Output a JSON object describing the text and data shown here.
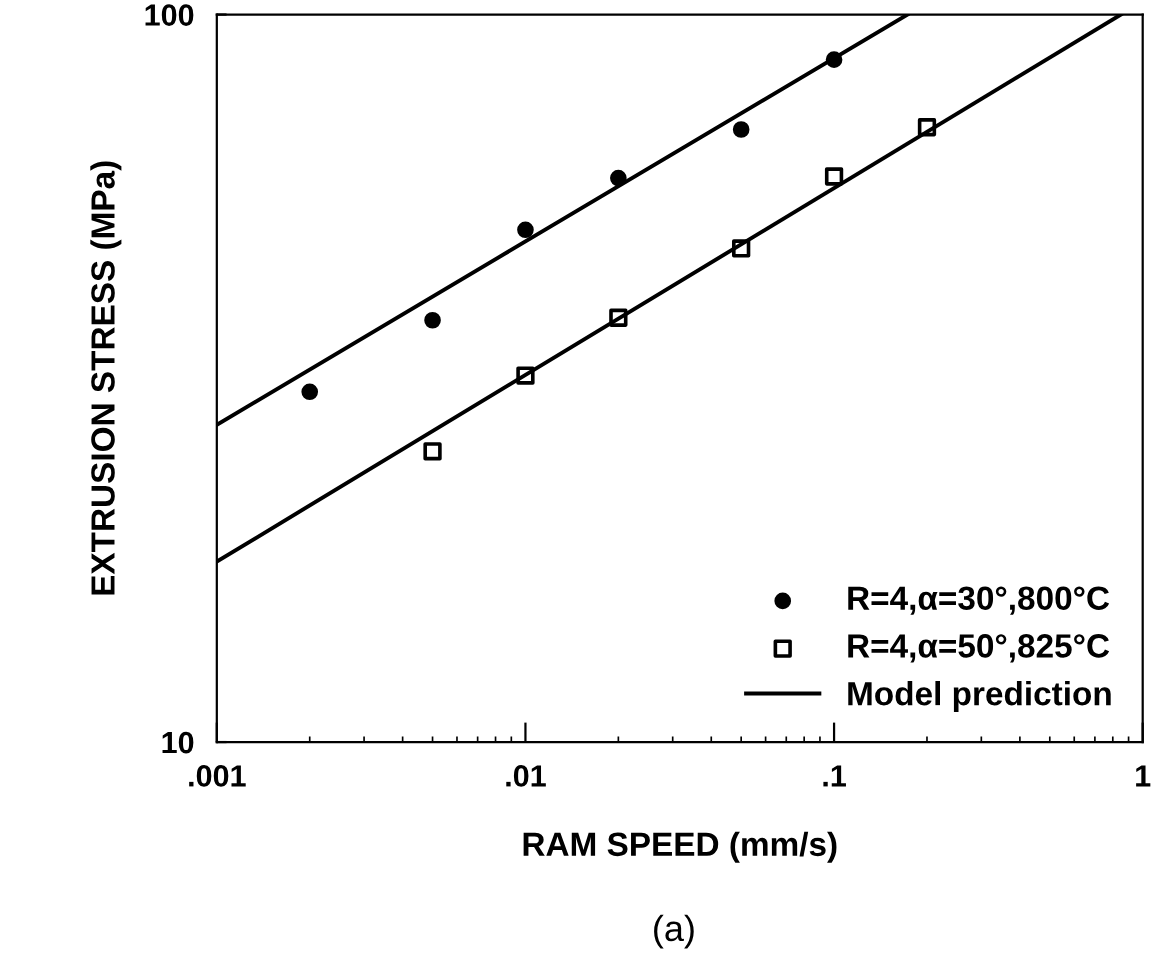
{
  "chart_data": {
    "type": "scatter",
    "xlabel": "RAM SPEED (mm/s)",
    "ylabel": "EXTRUSION STRESS (MPa)",
    "log": "xy",
    "xlim": [
      0.001,
      1
    ],
    "ylim": [
      10,
      100
    ],
    "xticks": [
      {
        "value": 0.001,
        "label": ".001"
      },
      {
        "value": 0.01,
        "label": ".01"
      },
      {
        "value": 0.1,
        "label": ".1"
      },
      1
    ],
    "yticks": [
      10,
      100
    ],
    "grid": false,
    "legend": "bottom right",
    "series": [
      {
        "name": "R=4,α=30°,800°C",
        "marker": "circle",
        "color": "#000000",
        "x": [
          0.002,
          0.005,
          0.01,
          0.02,
          0.05,
          0.1
        ],
        "values": [
          30.3,
          38,
          50.6,
          59.6,
          69.5,
          86.7
        ]
      },
      {
        "name": "R=4,α=50°,825°C",
        "marker": "square",
        "color": "#000000",
        "x": [
          0.005,
          0.01,
          0.02,
          0.05,
          0.1,
          0.2
        ],
        "values": [
          25.1,
          31.9,
          38.3,
          47.7,
          59.9,
          70
        ]
      },
      {
        "name": "Model prediction",
        "type": "line",
        "marker": "none",
        "color": "#000000",
        "x": [
          0.001,
          0.173
        ],
        "values": [
          27.3,
          100
        ]
      },
      {
        "type": "line",
        "marker": "none",
        "color": "#000000",
        "x": [
          0.001,
          0.85
        ],
        "values": [
          17.7,
          100
        ]
      }
    ],
    "annotations": [
      "(a)"
    ]
  }
}
